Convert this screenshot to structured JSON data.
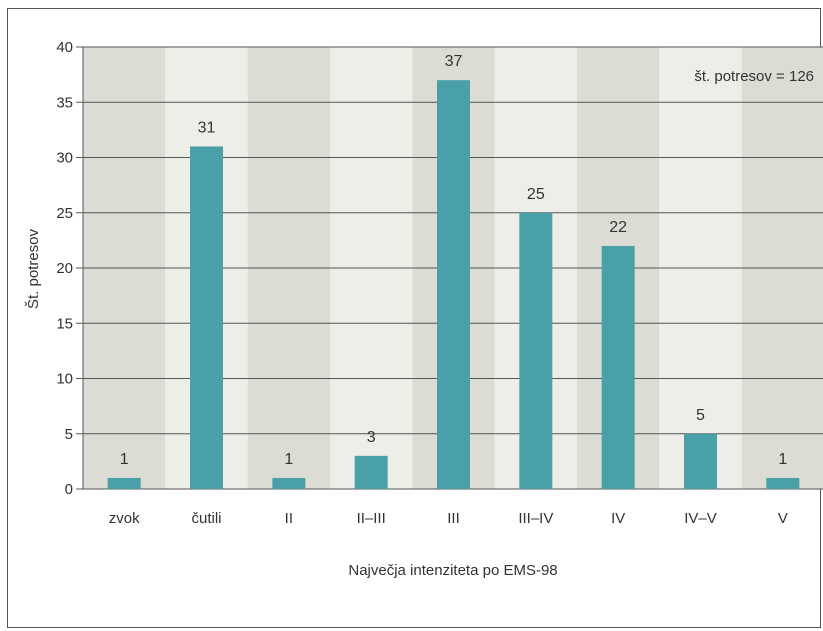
{
  "chart_data": {
    "type": "bar",
    "title": "",
    "xlabel": "Največja intenziteta po EMS-98",
    "ylabel": "Št. potresov",
    "ylim": [
      0,
      40
    ],
    "yticks": [
      0,
      5,
      10,
      15,
      20,
      25,
      30,
      35,
      40
    ],
    "grid": true,
    "categories": [
      "zvok",
      "čutili",
      "II",
      "II–III",
      "III",
      "III–IV",
      "IV",
      "IV–V",
      "V"
    ],
    "values": [
      1,
      31,
      1,
      3,
      37,
      25,
      22,
      5,
      1
    ],
    "annotation": "št. potresov = 126",
    "colors": {
      "bar": "#4aa0a8",
      "band_dark": "#dcdcd4",
      "band_light": "#eeeee8",
      "grid": "#555555",
      "text": "#333333"
    }
  }
}
